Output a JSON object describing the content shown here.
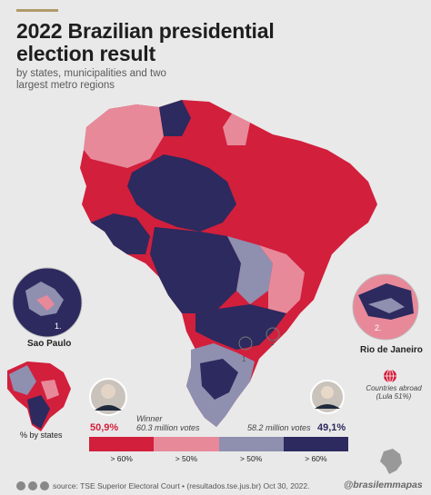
{
  "title": "2022 Brazilian presidential election result",
  "subtitle": "by states, municipalities and two largest metro regions",
  "insets": {
    "sao_paulo": {
      "number": "1.",
      "label": "Sao Paulo"
    },
    "rio": {
      "number": "2.",
      "label": "Rio de Janeiro"
    },
    "states": {
      "label": "% by states"
    }
  },
  "map_markers": {
    "marker1": "1",
    "marker2": "2"
  },
  "abroad": {
    "line1": "Countries abroad",
    "line2": "(Lula 51%)"
  },
  "winner": {
    "label": "Winner",
    "percent": "50,9%",
    "votes": "60.3 million votes"
  },
  "loser": {
    "percent": "49,1%",
    "votes": "58.2 million votes"
  },
  "legend": {
    "labels": [
      "> 60%",
      "> 50%",
      "> 50%",
      "> 60%"
    ],
    "colors": [
      "#d21f3c",
      "#e8899a",
      "#8f8fb0",
      "#2c2a5e"
    ]
  },
  "footer": {
    "source": "source: TSE Superior Electoral Court • (resultados.tse.jus.br) Oct 30, 2022.",
    "handle": "@brasilemmapas"
  },
  "colors": {
    "red_strong": "#d21f3c",
    "red_light": "#e8899a",
    "blue_light": "#8f8fb0",
    "blue_strong": "#2c2a5e",
    "background": "#e9e9e9"
  }
}
